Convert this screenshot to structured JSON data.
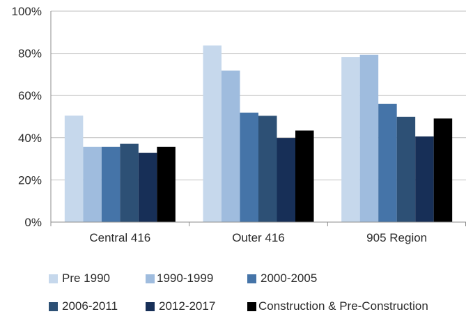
{
  "chart_data": {
    "type": "bar",
    "title": "",
    "xlabel": "",
    "ylabel": "",
    "ylim": [
      0,
      100
    ],
    "yticks": [
      0,
      20,
      40,
      60,
      80,
      100
    ],
    "ytick_labels": [
      "0%",
      "20%",
      "40%",
      "60%",
      "80%",
      "100%"
    ],
    "categories": [
      "Central 416",
      "Outer 416",
      "905 Region"
    ],
    "series": [
      {
        "name": "Pre 1990",
        "color": "#c6d8ec",
        "values": [
          50.5,
          83.7,
          78.2
        ]
      },
      {
        "name": "1990-1999",
        "color": "#9fbcde",
        "values": [
          35.7,
          71.8,
          79.3
        ]
      },
      {
        "name": "2000-2005",
        "color": "#4574a8",
        "values": [
          35.7,
          51.9,
          56.1
        ]
      },
      {
        "name": "2006-2011",
        "color": "#2d5075",
        "values": [
          37.1,
          50.4,
          49.9
        ]
      },
      {
        "name": "2012-2017",
        "color": "#172f57",
        "values": [
          32.8,
          39.9,
          40.6
        ]
      },
      {
        "name": "Construction & Pre-Construction",
        "color": "#000000",
        "values": [
          35.7,
          43.4,
          49.1
        ]
      }
    ],
    "grid": true,
    "legend_position": "bottom"
  }
}
